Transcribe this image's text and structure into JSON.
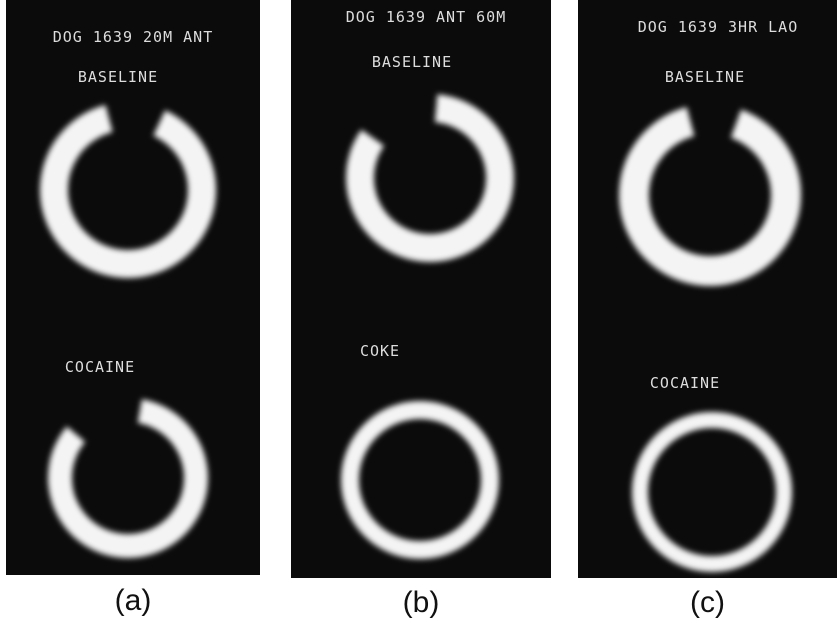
{
  "panels": [
    {
      "header": "DOG 1639 20M ANT",
      "top_label": "BASELINE",
      "bottom_label": "COCAINE",
      "caption": "(a)"
    },
    {
      "header": "DOG 1639 ANT 60M",
      "top_label": "BASELINE",
      "bottom_label": "COKE",
      "caption": "(b)"
    },
    {
      "header": "DOG 1639 3HR LAO",
      "top_label": "BASELINE",
      "bottom_label": "COCAINE",
      "caption": "(c)"
    }
  ]
}
